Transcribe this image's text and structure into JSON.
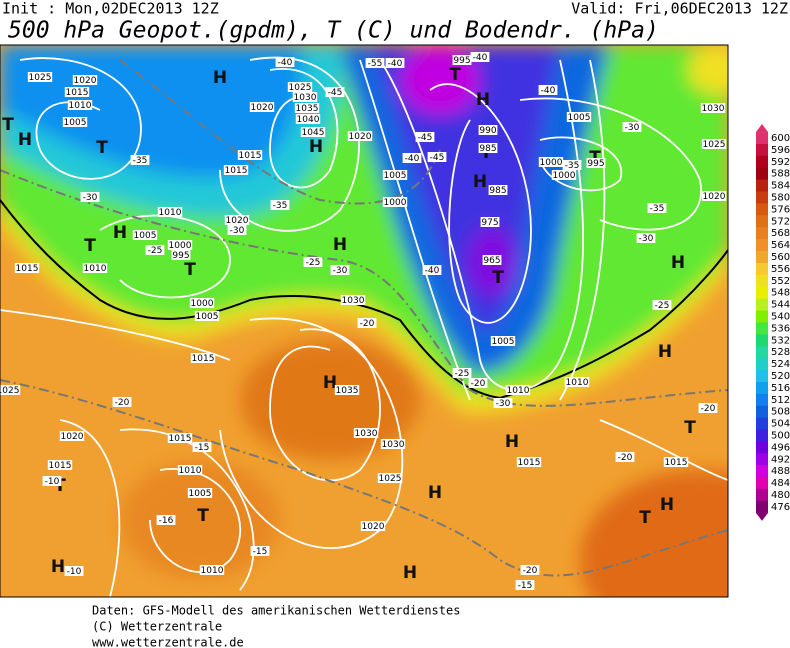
{
  "header": {
    "init": "Init : Mon,02DEC2013 12Z",
    "valid": "Valid: Fri,06DEC2013 12Z",
    "title": "500 hPa Geopot.(gpdm), T (C) und Bodendr. (hPa)"
  },
  "colorbar": {
    "levels": [
      600,
      596,
      592,
      588,
      584,
      580,
      576,
      572,
      568,
      564,
      560,
      556,
      552,
      548,
      544,
      540,
      536,
      532,
      528,
      524,
      520,
      516,
      512,
      508,
      504,
      500,
      496,
      492,
      488,
      484,
      480,
      476
    ],
    "colors": [
      "#e0306e",
      "#c8103c",
      "#b0001e",
      "#a00010",
      "#b82010",
      "#c83c10",
      "#d85a10",
      "#e07018",
      "#e88020",
      "#f09028",
      "#f0a828",
      "#f8c830",
      "#f0e020",
      "#e8f000",
      "#b8f020",
      "#80f000",
      "#40e840",
      "#20d870",
      "#20d8a0",
      "#20d0c8",
      "#20c0e8",
      "#10a0f0",
      "#1080f0",
      "#1060e0",
      "#2040e0",
      "#4020e0",
      "#7000e0",
      "#a000e8",
      "#d000e0",
      "#e000b0",
      "#b00090",
      "#800070"
    ]
  },
  "map_labels": [
    "H",
    "T",
    "H",
    "T",
    "H",
    "T",
    "H",
    "T",
    "H",
    "T",
    "H",
    "T",
    "H",
    "T",
    "T",
    "H",
    "H",
    "H",
    "T",
    "T",
    "H",
    "T",
    "T",
    "H",
    "H",
    "H",
    "H",
    "1025",
    "1020",
    "1015",
    "1010",
    "1005",
    "1020",
    "1025",
    "1030",
    "1035",
    "1040",
    "1045",
    "1015",
    "1015",
    "1020",
    "1005",
    "1000",
    "1010",
    "1005",
    "1000",
    "995",
    "1020",
    "1015",
    "1010",
    "1000",
    "1005",
    "1015",
    "1030",
    "1035",
    "1030",
    "1030",
    "1025",
    "1020",
    "1020",
    "1015",
    "1015",
    "1010",
    "1005",
    "1010",
    "995",
    "990",
    "985",
    "985",
    "975",
    "965",
    "1005",
    "1000",
    "1000",
    "995",
    "1030",
    "1025",
    "1020",
    "1010",
    "1010",
    "1015",
    "1015",
    "1005",
    "1025",
    "-40",
    "-45",
    "-40",
    "-30",
    "-35",
    "-30",
    "-35",
    "-30",
    "-25",
    "-25",
    "-30",
    "-45",
    "-40",
    "-45",
    "-40",
    "-35",
    "-35",
    "-30",
    "-25",
    "-20",
    "-25",
    "-20",
    "-30",
    "-20",
    "-20",
    "-15",
    "-10",
    "-16",
    "-15",
    "-10",
    "-20",
    "-15",
    "-20",
    "-55",
    "-40",
    "-40"
  ],
  "footer": [
    "Daten: GFS-Modell des amerikanischen Wetterdienstes",
    "(C) Wetterzentrale",
    "www.wetterzentrale.de"
  ]
}
